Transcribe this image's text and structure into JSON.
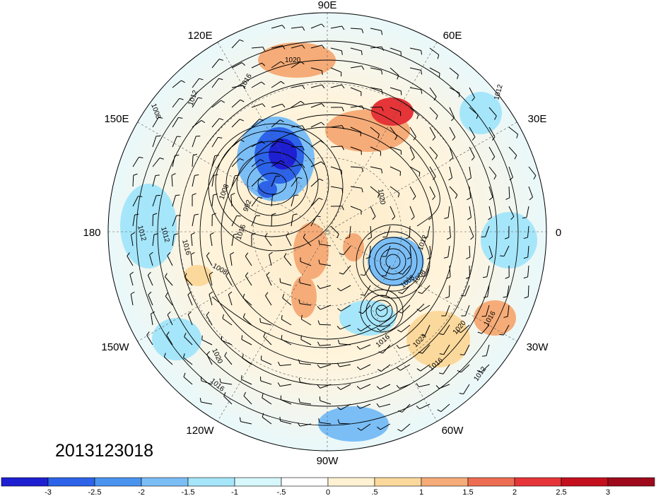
{
  "map": {
    "projection": "north-polar-stereographic",
    "timestamp": "2013123018",
    "longitude_labels": [
      {
        "text": "90E",
        "lon": 90
      },
      {
        "text": "60E",
        "lon": 60
      },
      {
        "text": "30E",
        "lon": 30
      },
      {
        "text": "0",
        "lon": 0
      },
      {
        "text": "30W",
        "lon": -30
      },
      {
        "text": "60W",
        "lon": -60
      },
      {
        "text": "90W",
        "lon": -90
      },
      {
        "text": "120W",
        "lon": -120
      },
      {
        "text": "150W",
        "lon": -150
      },
      {
        "text": "180",
        "lon": 180
      },
      {
        "text": "150E",
        "lon": 150
      },
      {
        "text": "120E",
        "lon": 120
      }
    ],
    "contour_labels": [
      "1020",
      "1016",
      "1012",
      "1008",
      "1008",
      "1012",
      "1016",
      "1012",
      "1012",
      "1008",
      "992",
      "1016",
      "1008",
      "1020",
      "1016",
      "1024",
      "1020",
      "1016",
      "1016",
      "1012",
      "1020",
      "1016",
      "1008",
      "1012"
    ],
    "fields": {
      "shaded": "anomaly",
      "contours": "sea-level pressure (hPa)",
      "vectors": "wind barbs"
    }
  },
  "colorbar": {
    "labels": [
      "-3",
      "-2.5",
      "-2",
      "-1.5",
      "-1",
      "-.5",
      "0",
      ".5",
      "1",
      "1.5",
      "2",
      "2.5",
      "3"
    ],
    "colors": [
      "#1f1fd2",
      "#2c63e8",
      "#4a94f0",
      "#7bbef6",
      "#a6e6fa",
      "#d6f7fb",
      "#ffffff",
      "#fff2d2",
      "#fbd99c",
      "#f6ac78",
      "#ed6d52",
      "#e53538",
      "#c4101e",
      "#9e0a1c"
    ]
  }
}
